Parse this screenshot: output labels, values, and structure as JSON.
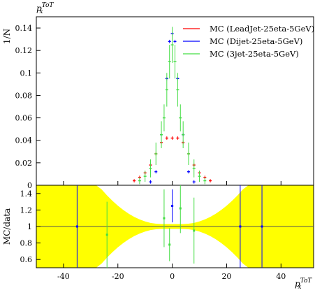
{
  "title": "p_x^ToT",
  "chart_data": [
    {
      "type": "scatter",
      "panel": "main",
      "ylabel": "1/N",
      "xlim": [
        -50,
        52
      ],
      "ylim": [
        0,
        0.15
      ],
      "yticks": [
        "0",
        "0.02",
        "0.04",
        "0.06",
        "0.08",
        "0.1",
        "0.12",
        "0.14"
      ],
      "legend_position": "top-right",
      "series": [
        {
          "name": "MC (LeadJet-25eta-5GeV)",
          "color": "#ff0000",
          "x": [
            -14,
            -12,
            -10,
            -8,
            -6,
            -4,
            -2,
            0,
            2,
            4,
            6,
            8,
            10,
            12,
            14
          ],
          "y": [
            0.004,
            0.007,
            0.011,
            0.018,
            0.028,
            0.038,
            0.042,
            0.042,
            0.042,
            0.038,
            0.028,
            0.018,
            0.011,
            0.007,
            0.004
          ]
        },
        {
          "name": "MC (Dijet-25eta-5GeV)",
          "color": "#0000ff",
          "x": [
            -8,
            -6,
            -4,
            -2,
            -1,
            0,
            1,
            2,
            4,
            6,
            8
          ],
          "y": [
            0.003,
            0.012,
            0.045,
            0.095,
            0.128,
            0.135,
            0.128,
            0.095,
            0.045,
            0.012,
            0.003
          ]
        },
        {
          "name": "MC (3jet-25eta-5GeV)",
          "color": "#44dd44",
          "x": [
            -12,
            -10,
            -8,
            -6,
            -4,
            -3,
            -2,
            -1,
            0,
            1,
            2,
            3,
            4,
            6,
            8,
            10,
            12
          ],
          "y": [
            0.004,
            0.008,
            0.015,
            0.028,
            0.045,
            0.06,
            0.085,
            0.11,
            0.125,
            0.11,
            0.085,
            0.06,
            0.045,
            0.028,
            0.015,
            0.008,
            0.004
          ],
          "yerr": [
            0.003,
            0.005,
            0.008,
            0.01,
            0.012,
            0.012,
            0.015,
            0.015,
            0.016,
            0.015,
            0.015,
            0.012,
            0.012,
            0.01,
            0.008,
            0.005,
            0.003
          ]
        }
      ]
    },
    {
      "type": "scatter",
      "panel": "ratio",
      "xlabel": "p_x^ToT",
      "ylabel": "MC/data",
      "xlim": [
        -50,
        52
      ],
      "ylim": [
        0.5,
        1.5
      ],
      "xticks": [
        "-40",
        "-20",
        "0",
        "20",
        "40"
      ],
      "yticks": [
        "0.6",
        "0.8",
        "1",
        "1.2",
        "1.4"
      ],
      "reference_line": 1
    }
  ]
}
